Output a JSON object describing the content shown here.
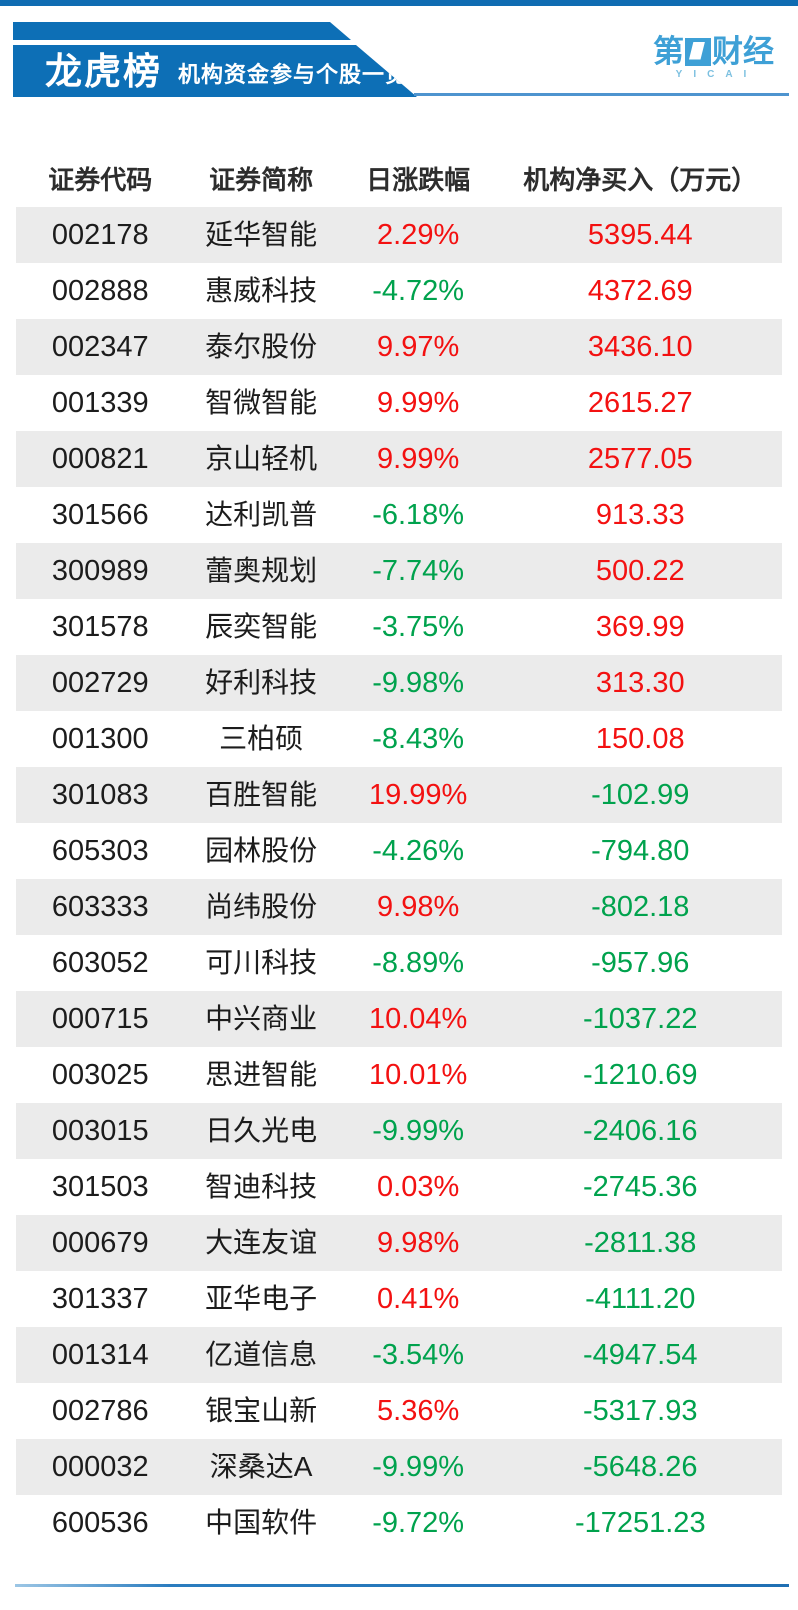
{
  "header": {
    "title": "龙虎榜",
    "subtitle": "机构资金参与个股一览",
    "logo": {
      "prefix": "第",
      "suffix": "财经",
      "letters": "YICAI",
      "color": "#3ea0d6"
    }
  },
  "colors": {
    "ribbon_blue": "#0d6fb6",
    "top_bar_blue": "#0f6cb2",
    "positive_red": "#f31111",
    "negative_green": "#00a24d",
    "alt_row_gray": "#ebebeb",
    "rule_blue": "#2a7cbf"
  },
  "table": {
    "columns": [
      "证券代码",
      "证券简称",
      "日涨跌幅",
      "机构净买入（万元）"
    ],
    "rows": [
      {
        "code": "002178",
        "name": "延华智能",
        "change": "2.29%",
        "net": "5395.44"
      },
      {
        "code": "002888",
        "name": "惠威科技",
        "change": "-4.72%",
        "net": "4372.69"
      },
      {
        "code": "002347",
        "name": "泰尔股份",
        "change": "9.97%",
        "net": "3436.10"
      },
      {
        "code": "001339",
        "name": "智微智能",
        "change": "9.99%",
        "net": "2615.27"
      },
      {
        "code": "000821",
        "name": "京山轻机",
        "change": "9.99%",
        "net": "2577.05"
      },
      {
        "code": "301566",
        "name": "达利凯普",
        "change": "-6.18%",
        "net": "913.33"
      },
      {
        "code": "300989",
        "name": "蕾奥规划",
        "change": "-7.74%",
        "net": "500.22"
      },
      {
        "code": "301578",
        "name": "辰奕智能",
        "change": "-3.75%",
        "net": "369.99"
      },
      {
        "code": "002729",
        "name": "好利科技",
        "change": "-9.98%",
        "net": "313.30"
      },
      {
        "code": "001300",
        "name": "三柏硕",
        "change": "-8.43%",
        "net": "150.08"
      },
      {
        "code": "301083",
        "name": "百胜智能",
        "change": "19.99%",
        "net": "-102.99"
      },
      {
        "code": "605303",
        "name": "园林股份",
        "change": "-4.26%",
        "net": "-794.80"
      },
      {
        "code": "603333",
        "name": "尚纬股份",
        "change": "9.98%",
        "net": "-802.18"
      },
      {
        "code": "603052",
        "name": "可川科技",
        "change": "-8.89%",
        "net": "-957.96"
      },
      {
        "code": "000715",
        "name": "中兴商业",
        "change": "10.04%",
        "net": "-1037.22"
      },
      {
        "code": "003025",
        "name": "思进智能",
        "change": "10.01%",
        "net": "-1210.69"
      },
      {
        "code": "003015",
        "name": "日久光电",
        "change": "-9.99%",
        "net": "-2406.16"
      },
      {
        "code": "301503",
        "name": "智迪科技",
        "change": "0.03%",
        "net": "-2745.36"
      },
      {
        "code": "000679",
        "name": "大连友谊",
        "change": "9.98%",
        "net": "-2811.38"
      },
      {
        "code": "301337",
        "name": "亚华电子",
        "change": "0.41%",
        "net": "-4111.20"
      },
      {
        "code": "001314",
        "name": "亿道信息",
        "change": "-3.54%",
        "net": "-4947.54"
      },
      {
        "code": "002786",
        "name": "银宝山新",
        "change": "5.36%",
        "net": "-5317.93"
      },
      {
        "code": "000032",
        "name": "深桑达A",
        "change": "-9.99%",
        "net": "-5648.26"
      },
      {
        "code": "600536",
        "name": "中国软件",
        "change": "-9.72%",
        "net": "-17251.23"
      }
    ]
  },
  "chart_data": {
    "type": "table",
    "title": "龙虎榜 机构资金参与个股一览",
    "columns": [
      "证券代码",
      "证券简称",
      "日涨跌幅(%)",
      "机构净买入(万元)"
    ],
    "categories": [
      "延华智能",
      "惠威科技",
      "泰尔股份",
      "智微智能",
      "京山轻机",
      "达利凯普",
      "蕾奥规划",
      "辰奕智能",
      "好利科技",
      "三柏硕",
      "百胜智能",
      "园林股份",
      "尚纬股份",
      "可川科技",
      "中兴商业",
      "思进智能",
      "日久光电",
      "智迪科技",
      "大连友谊",
      "亚华电子",
      "亿道信息",
      "银宝山新",
      "深桑达A",
      "中国软件"
    ],
    "series": [
      {
        "name": "日涨跌幅(%)",
        "values": [
          2.29,
          -4.72,
          9.97,
          9.99,
          9.99,
          -6.18,
          -7.74,
          -3.75,
          -9.98,
          -8.43,
          19.99,
          -4.26,
          9.98,
          -8.89,
          10.04,
          10.01,
          -9.99,
          0.03,
          9.98,
          0.41,
          -3.54,
          5.36,
          -9.99,
          -9.72
        ]
      },
      {
        "name": "机构净买入(万元)",
        "values": [
          5395.44,
          4372.69,
          3436.1,
          2615.27,
          2577.05,
          913.33,
          500.22,
          369.99,
          313.3,
          150.08,
          -102.99,
          -794.8,
          -802.18,
          -957.96,
          -1037.22,
          -1210.69,
          -2406.16,
          -2745.36,
          -2811.38,
          -4111.2,
          -4947.54,
          -5317.93,
          -5648.26,
          -17251.23
        ]
      }
    ]
  }
}
